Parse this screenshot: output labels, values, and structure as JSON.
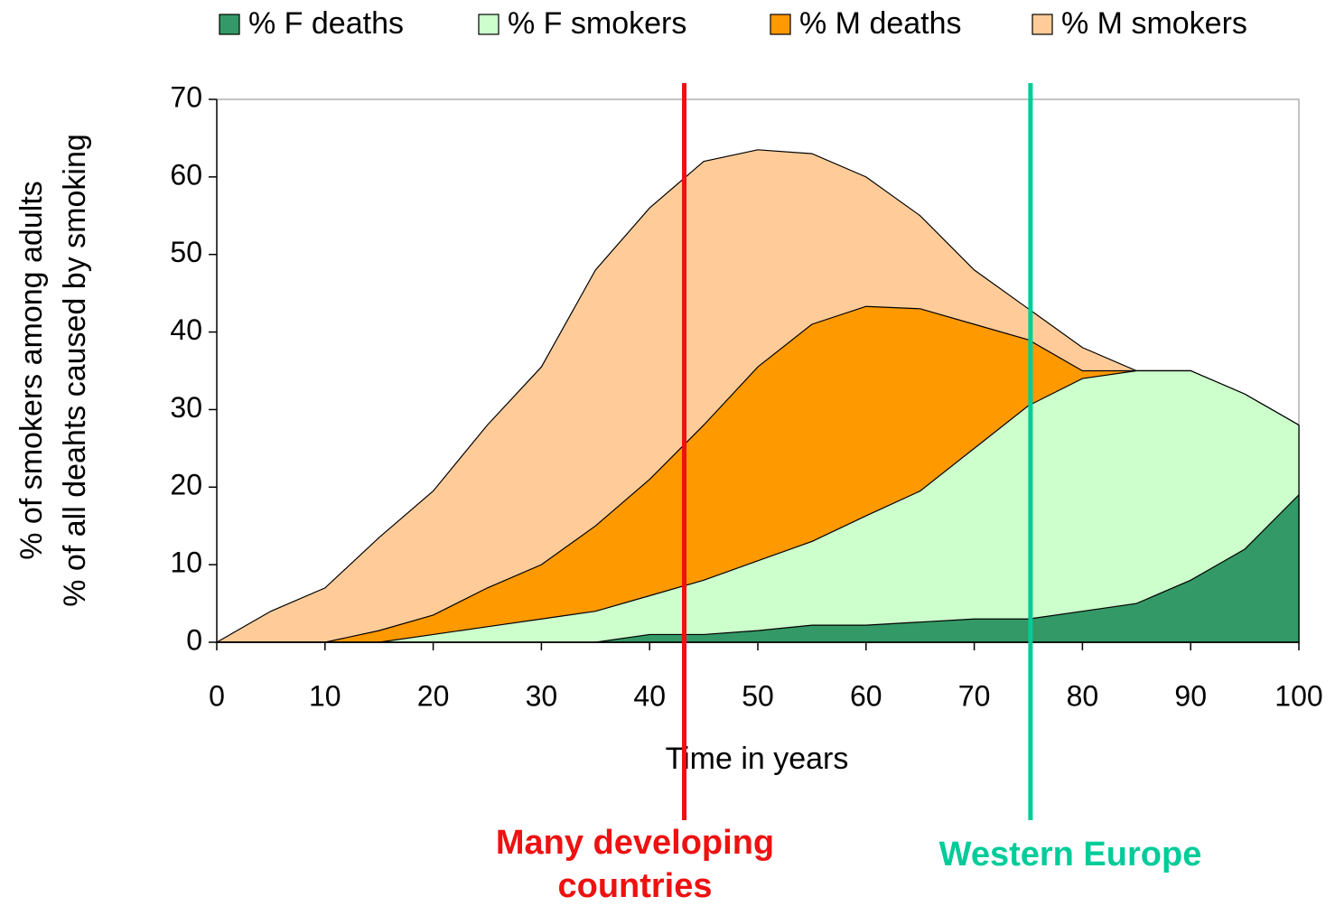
{
  "chart_data": {
    "type": "area",
    "x_label": "Time in years",
    "y_label": [
      "% of smokers among adults",
      "% of all deahts caused by smoking"
    ],
    "x": [
      0,
      5,
      10,
      15,
      20,
      25,
      30,
      35,
      40,
      45,
      50,
      55,
      60,
      65,
      70,
      75,
      80,
      85,
      90,
      95,
      100
    ],
    "series": [
      {
        "name": "% F deaths",
        "color": "#339966",
        "values": [
          0,
          0,
          0,
          0,
          0,
          0,
          0,
          0,
          1,
          1,
          1.5,
          2.2,
          2.2,
          2.6,
          3,
          3,
          4,
          5,
          8,
          12,
          19
        ]
      },
      {
        "name": "% F smokers",
        "color": "#ccffcc",
        "values": [
          0,
          0,
          0,
          0,
          1,
          2,
          3,
          4,
          6,
          8,
          10.5,
          13,
          16.3,
          19.5,
          25,
          30.5,
          34,
          35,
          35,
          32,
          28
        ]
      },
      {
        "name": "% M deaths",
        "color": "#ff9900",
        "values": [
          0,
          0,
          0,
          1.5,
          3.5,
          7,
          10,
          15,
          21,
          28,
          35.5,
          41,
          43.3,
          43,
          41,
          39,
          35,
          35,
          35,
          32,
          28
        ]
      },
      {
        "name": "% M smokers",
        "color": "#ffcc99",
        "values": [
          0,
          4,
          7,
          13.5,
          19.5,
          28,
          35.5,
          48,
          56,
          62,
          63.5,
          63,
          60,
          55,
          48,
          43,
          38,
          35,
          35,
          32,
          28
        ]
      }
    ],
    "xlim": [
      0,
      100
    ],
    "xticks": [
      0,
      10,
      20,
      30,
      40,
      50,
      60,
      70,
      80,
      90,
      100
    ],
    "ylim": [
      0,
      70
    ],
    "yticks": [
      0,
      10,
      20,
      30,
      40,
      50,
      60,
      70
    ],
    "legend": "top",
    "annotations": [
      {
        "x": 43.2,
        "color": "#ee1111",
        "label": [
          "Many developing",
          "countries"
        ]
      },
      {
        "x": 75.2,
        "color": "#00cc99",
        "label": [
          "Western Europe"
        ]
      }
    ]
  }
}
